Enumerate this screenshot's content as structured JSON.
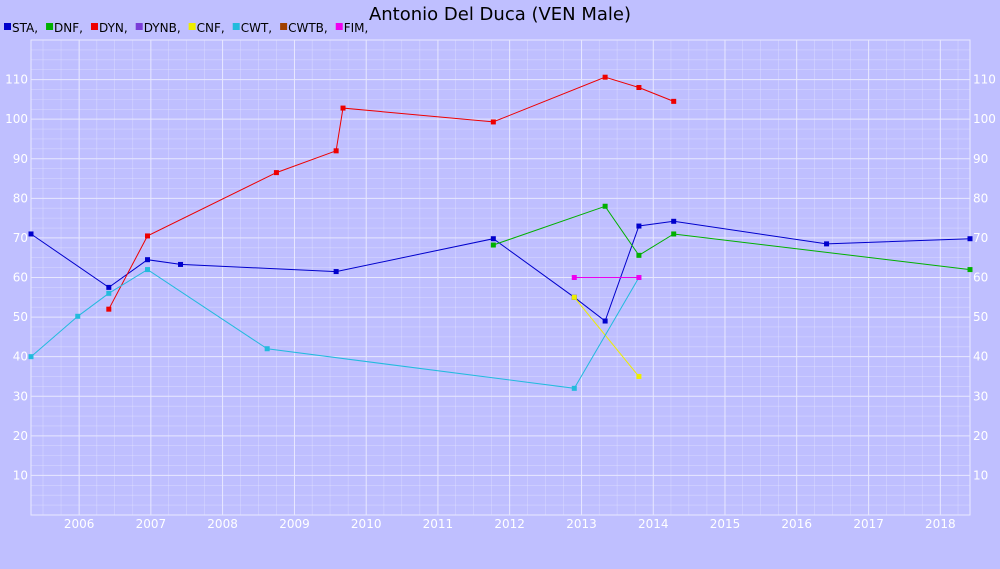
{
  "colors": {
    "background": "#bfbfff",
    "grid": "#e8e8ff",
    "tick_text": "#ffffff"
  },
  "chart_data": {
    "type": "line",
    "title": "Antonio Del Duca (VEN Male)",
    "xlabel": "",
    "ylabel": "",
    "x_ticks": [
      "2006",
      "2007",
      "2008",
      "2009",
      "2010",
      "2011",
      "2012",
      "2013",
      "2014",
      "2015",
      "2016",
      "2017",
      "2018"
    ],
    "y_ticks": [
      10,
      20,
      30,
      40,
      50,
      60,
      70,
      80,
      90,
      100,
      110
    ],
    "xlim": [
      "2005-05-01",
      "2018-06-01"
    ],
    "ylim": [
      0,
      120
    ],
    "grid": true,
    "legend_position": "top-left",
    "series": [
      {
        "name": "STA",
        "legend_label": "STA,",
        "color": "#0000cc",
        "points": [
          [
            "2005-05-01",
            71
          ],
          [
            "2006-06-01",
            57.5
          ],
          [
            "2006-12-15",
            64.5
          ],
          [
            "2007-06-01",
            63.3
          ],
          [
            "2009-08-01",
            61.5
          ],
          [
            "2011-10-10",
            69.8
          ],
          [
            "2012-11-25",
            55
          ],
          [
            "2013-05-01",
            49
          ],
          [
            "2013-10-20",
            73
          ],
          [
            "2014-04-15",
            74.2
          ],
          [
            "2016-06-01",
            68.5
          ],
          [
            "2018-06-01",
            69.8
          ]
        ]
      },
      {
        "name": "DNF",
        "legend_label": "DNF,",
        "color": "#00b000",
        "points": [
          [
            "2011-10-10",
            68.2
          ],
          [
            "2013-05-01",
            78
          ],
          [
            "2013-10-20",
            65.6
          ],
          [
            "2014-04-15",
            71
          ],
          [
            "2018-06-01",
            62
          ]
        ]
      },
      {
        "name": "DYN",
        "legend_label": "DYN,",
        "color": "#ee0000",
        "points": [
          [
            "2006-06-01",
            52
          ],
          [
            "2006-12-15",
            70.5
          ],
          [
            "2008-10-01",
            86.5
          ],
          [
            "2009-08-01",
            92
          ],
          [
            "2009-09-05",
            102.8
          ],
          [
            "2011-10-10",
            99.3
          ],
          [
            "2013-05-01",
            110.6
          ],
          [
            "2013-10-20",
            108
          ],
          [
            "2014-04-15",
            104.5
          ]
        ]
      },
      {
        "name": "DYNB",
        "legend_label": "DYNB,",
        "color": "#7a3cd8",
        "points": []
      },
      {
        "name": "CNF",
        "legend_label": "CNF,",
        "color": "#eeee00",
        "points": [
          [
            "2012-11-25",
            55
          ],
          [
            "2013-10-20",
            35
          ]
        ]
      },
      {
        "name": "CWT",
        "legend_label": "CWT,",
        "color": "#22bbdd",
        "points": [
          [
            "2005-05-01",
            40
          ],
          [
            "2005-12-25",
            50.2
          ],
          [
            "2006-06-01",
            56
          ],
          [
            "2006-12-15",
            62
          ],
          [
            "2008-08-15",
            42
          ],
          [
            "2012-11-25",
            32
          ],
          [
            "2013-10-20",
            60
          ]
        ]
      },
      {
        "name": "CWTB",
        "legend_label": "CWTB,",
        "color": "#a04000",
        "points": []
      },
      {
        "name": "FIM",
        "legend_label": "FIM,",
        "color": "#ee00ee",
        "points": [
          [
            "2012-11-25",
            60
          ],
          [
            "2013-10-20",
            60
          ]
        ]
      }
    ]
  }
}
